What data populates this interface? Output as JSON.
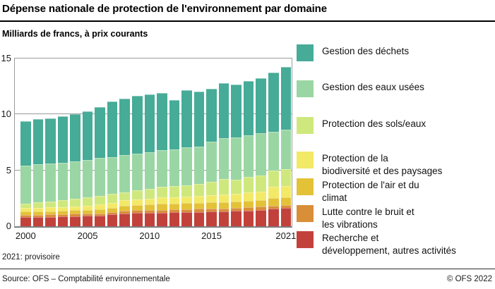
{
  "header": {
    "title": "Dépense nationale de protection de l'environnement par domaine"
  },
  "chart": {
    "subtitle": "Milliards de francs, à prix courants"
  },
  "chart_data": {
    "type": "bar",
    "stacked": true,
    "title": "Dépense nationale de protection de l'environnement par domaine",
    "xlabel": "",
    "ylabel": "Milliards de francs, à prix courants",
    "x": [
      2000,
      2001,
      2002,
      2003,
      2004,
      2005,
      2006,
      2007,
      2008,
      2009,
      2010,
      2011,
      2012,
      2013,
      2014,
      2015,
      2016,
      2017,
      2018,
      2019,
      2020,
      2021
    ],
    "x_tick_labels": [
      "2000",
      "2005",
      "2010",
      "2015",
      "2021"
    ],
    "x_tick_bar_index": [
      0,
      5,
      10,
      15,
      21
    ],
    "y_ticks": [
      0,
      5,
      10,
      15
    ],
    "ylim": [
      0,
      15
    ],
    "grid": "horizontal",
    "legend_position": "right",
    "series": [
      {
        "name": "Recherche et développement, autres activités",
        "color": "#C2423B",
        "values": [
          0.8,
          0.82,
          0.85,
          0.87,
          0.9,
          0.92,
          0.95,
          1.05,
          1.15,
          1.18,
          1.2,
          1.22,
          1.24,
          1.26,
          1.28,
          1.3,
          1.33,
          1.36,
          1.4,
          1.45,
          1.55,
          1.65
        ]
      },
      {
        "name": "Lutte contre le bruit et les vibrations",
        "color": "#D98E38",
        "values": [
          0.2,
          0.2,
          0.2,
          0.2,
          0.21,
          0.21,
          0.21,
          0.22,
          0.25,
          0.25,
          0.25,
          0.26,
          0.26,
          0.26,
          0.27,
          0.27,
          0.27,
          0.28,
          0.28,
          0.29,
          0.27,
          0.25
        ]
      },
      {
        "name": "Protection de l'air et du climat",
        "color": "#E3C237",
        "values": [
          0.3,
          0.3,
          0.3,
          0.31,
          0.31,
          0.33,
          0.37,
          0.38,
          0.45,
          0.47,
          0.5,
          0.52,
          0.52,
          0.53,
          0.55,
          0.55,
          0.56,
          0.56,
          0.58,
          0.58,
          0.68,
          0.7
        ]
      },
      {
        "name": "Protection de la biodiversité et des paysages",
        "color": "#F2E967",
        "values": [
          0.32,
          0.34,
          0.35,
          0.35,
          0.37,
          0.38,
          0.42,
          0.42,
          0.47,
          0.5,
          0.52,
          0.57,
          0.57,
          0.6,
          0.62,
          0.66,
          0.7,
          0.72,
          0.76,
          0.78,
          1.0,
          1.0
        ]
      },
      {
        "name": "Protection des sols/eaux",
        "color": "#CFE87D",
        "values": [
          0.42,
          0.48,
          0.51,
          0.58,
          0.67,
          0.72,
          0.78,
          0.81,
          0.73,
          0.8,
          0.88,
          0.93,
          0.99,
          1.03,
          1.08,
          1.21,
          1.34,
          1.22,
          1.39,
          1.42,
          1.5,
          1.48
        ]
      },
      {
        "name": "Gestion des eaux usées",
        "color": "#9AD6A4",
        "values": [
          3.38,
          3.43,
          3.4,
          3.38,
          3.36,
          3.36,
          3.36,
          3.32,
          3.31,
          3.29,
          3.27,
          3.32,
          3.29,
          3.4,
          3.34,
          3.57,
          3.68,
          3.78,
          3.72,
          3.78,
          3.45,
          3.53
        ]
      },
      {
        "name": "Gestion des déchets",
        "color": "#46AB97",
        "values": [
          3.97,
          4.01,
          4.05,
          4.14,
          4.2,
          4.33,
          4.56,
          4.93,
          5.03,
          5.17,
          5.18,
          5.11,
          4.43,
          5.06,
          4.88,
          4.73,
          4.89,
          4.73,
          4.83,
          4.91,
          5.26,
          5.61
        ]
      }
    ]
  },
  "legend": {
    "items": [
      {
        "label": "Gestion des déchets",
        "color": "#46AB97"
      },
      {
        "label": "Gestion des eaux usées",
        "color": "#9AD6A4"
      },
      {
        "label": "Protection des sols/eaux",
        "color": "#CFE87D"
      },
      {
        "label": "Protection de la\nbiodiversité et des paysages",
        "color": "#F2E967"
      },
      {
        "label": "Protection de l'air et du\nclimat",
        "color": "#E3C237"
      },
      {
        "label": "Lutte contre le bruit et\nles vibrations",
        "color": "#D98E38"
      },
      {
        "label": "Recherche et\ndéveloppement, autres activités",
        "color": "#C2423B"
      }
    ]
  },
  "note": "2021: provisoire",
  "footer": {
    "source": "Source: OFS – Comptabilité environnementale",
    "copyright": "© OFS 2022"
  }
}
